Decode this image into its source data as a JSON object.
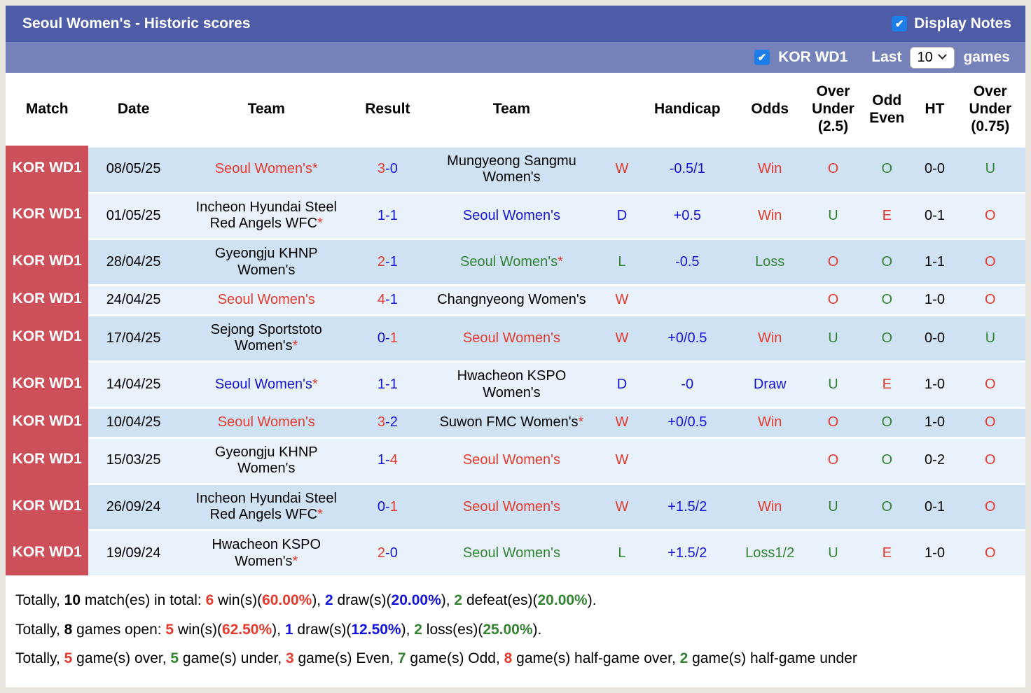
{
  "colors": {
    "red": "#e63a2e",
    "blue": "#1414dd",
    "green": "#338333",
    "black": "#000000",
    "header_bar": "#4e5ba6",
    "subheader_bar": "#7581b9",
    "checkbox_blue": "#1d7de9",
    "match_cell_red": "#cc4f5a",
    "row_odd": "#cfe2f3",
    "row_even": "#e9f2fb"
  },
  "header": {
    "title": "Seoul Women's - Historic scores",
    "display_notes_label": "Display Notes",
    "display_notes_checked": true
  },
  "subheader": {
    "league_label": "KOR WD1",
    "league_checked": true,
    "last_label": "Last",
    "games_count": "10",
    "games_label": "games"
  },
  "table": {
    "columns": [
      {
        "key": "match",
        "label": "Match"
      },
      {
        "key": "date",
        "label": "Date"
      },
      {
        "key": "team1",
        "label": "Team"
      },
      {
        "key": "result",
        "label": "Result"
      },
      {
        "key": "team2",
        "label": "Team"
      },
      {
        "key": "wdl",
        "label": ""
      },
      {
        "key": "handicap",
        "label": "Handicap"
      },
      {
        "key": "odds",
        "label": "Odds"
      },
      {
        "key": "ou25",
        "label": "Over Under (2.5)",
        "lines": [
          "Over",
          "Under",
          "(2.5)"
        ]
      },
      {
        "key": "odd_even",
        "label": "Odd Even",
        "lines": [
          "Odd",
          "Even"
        ]
      },
      {
        "key": "ht",
        "label": "HT"
      },
      {
        "key": "ou075",
        "label": "Over Under (0.75)",
        "lines": [
          "Over",
          "Under",
          "(0.75)"
        ]
      }
    ],
    "rows": [
      {
        "match": "KOR WD1",
        "date": "08/05/25",
        "team1": {
          "name": "Seoul Women's",
          "star": true,
          "color": "red"
        },
        "result": {
          "home": "3",
          "away": "0",
          "home_color": "red",
          "away_color": "blue"
        },
        "team2": {
          "name": "Mungyeong Sangmu Women's",
          "star": false,
          "color": "black"
        },
        "wdl": {
          "text": "W",
          "color": "red"
        },
        "handicap": "-0.5/1",
        "odds": {
          "text": "Win",
          "color": "red"
        },
        "ou25": {
          "text": "O",
          "color": "red"
        },
        "odd_even": {
          "text": "O",
          "color": "green"
        },
        "ht": "0-0",
        "ou075": {
          "text": "U",
          "color": "green"
        }
      },
      {
        "match": "KOR WD1",
        "date": "01/05/25",
        "team1": {
          "name": "Incheon Hyundai Steel Red Angels WFC",
          "star": true,
          "color": "black"
        },
        "result": {
          "home": "1",
          "away": "1",
          "home_color": "blue",
          "away_color": "blue"
        },
        "team2": {
          "name": "Seoul Women's",
          "star": false,
          "color": "blue"
        },
        "wdl": {
          "text": "D",
          "color": "blue"
        },
        "handicap": "+0.5",
        "odds": {
          "text": "Win",
          "color": "red"
        },
        "ou25": {
          "text": "U",
          "color": "green"
        },
        "odd_even": {
          "text": "E",
          "color": "red"
        },
        "ht": "0-1",
        "ou075": {
          "text": "O",
          "color": "red"
        }
      },
      {
        "match": "KOR WD1",
        "date": "28/04/25",
        "team1": {
          "name": "Gyeongju KHNP Women's",
          "star": false,
          "color": "black"
        },
        "result": {
          "home": "2",
          "away": "1",
          "home_color": "red",
          "away_color": "blue"
        },
        "team2": {
          "name": "Seoul Women's",
          "star": true,
          "color": "green"
        },
        "wdl": {
          "text": "L",
          "color": "green"
        },
        "handicap": "-0.5",
        "odds": {
          "text": "Loss",
          "color": "green"
        },
        "ou25": {
          "text": "O",
          "color": "red"
        },
        "odd_even": {
          "text": "O",
          "color": "green"
        },
        "ht": "1-1",
        "ou075": {
          "text": "O",
          "color": "red"
        }
      },
      {
        "match": "KOR WD1",
        "date": "24/04/25",
        "team1": {
          "name": "Seoul Women's",
          "star": false,
          "color": "red"
        },
        "result": {
          "home": "4",
          "away": "1",
          "home_color": "red",
          "away_color": "blue"
        },
        "team2": {
          "name": "Changnyeong Women's",
          "star": false,
          "color": "black"
        },
        "wdl": {
          "text": "W",
          "color": "red"
        },
        "handicap": "",
        "odds": {
          "text": "",
          "color": "black"
        },
        "ou25": {
          "text": "O",
          "color": "red"
        },
        "odd_even": {
          "text": "O",
          "color": "green"
        },
        "ht": "1-0",
        "ou075": {
          "text": "O",
          "color": "red"
        }
      },
      {
        "match": "KOR WD1",
        "date": "17/04/25",
        "team1": {
          "name": "Sejong Sportstoto Women's",
          "star": true,
          "color": "black"
        },
        "result": {
          "home": "0",
          "away": "1",
          "home_color": "blue",
          "away_color": "red"
        },
        "team2": {
          "name": "Seoul Women's",
          "star": false,
          "color": "red"
        },
        "wdl": {
          "text": "W",
          "color": "red"
        },
        "handicap": "+0/0.5",
        "odds": {
          "text": "Win",
          "color": "red"
        },
        "ou25": {
          "text": "U",
          "color": "green"
        },
        "odd_even": {
          "text": "O",
          "color": "green"
        },
        "ht": "0-0",
        "ou075": {
          "text": "U",
          "color": "green"
        }
      },
      {
        "match": "KOR WD1",
        "date": "14/04/25",
        "team1": {
          "name": "Seoul Women's",
          "star": true,
          "color": "blue"
        },
        "result": {
          "home": "1",
          "away": "1",
          "home_color": "blue",
          "away_color": "blue"
        },
        "team2": {
          "name": "Hwacheon KSPO Women's",
          "star": false,
          "color": "black"
        },
        "wdl": {
          "text": "D",
          "color": "blue"
        },
        "handicap": "-0",
        "odds": {
          "text": "Draw",
          "color": "blue"
        },
        "ou25": {
          "text": "U",
          "color": "green"
        },
        "odd_even": {
          "text": "E",
          "color": "red"
        },
        "ht": "1-0",
        "ou075": {
          "text": "O",
          "color": "red"
        }
      },
      {
        "match": "KOR WD1",
        "date": "10/04/25",
        "team1": {
          "name": "Seoul Women's",
          "star": false,
          "color": "red"
        },
        "result": {
          "home": "3",
          "away": "2",
          "home_color": "red",
          "away_color": "blue"
        },
        "team2": {
          "name": "Suwon FMC Women's",
          "star": true,
          "color": "black"
        },
        "wdl": {
          "text": "W",
          "color": "red"
        },
        "handicap": "+0/0.5",
        "odds": {
          "text": "Win",
          "color": "red"
        },
        "ou25": {
          "text": "O",
          "color": "red"
        },
        "odd_even": {
          "text": "O",
          "color": "green"
        },
        "ht": "1-0",
        "ou075": {
          "text": "O",
          "color": "red"
        }
      },
      {
        "match": "KOR WD1",
        "date": "15/03/25",
        "team1": {
          "name": "Gyeongju KHNP Women's",
          "star": false,
          "color": "black"
        },
        "result": {
          "home": "1",
          "away": "4",
          "home_color": "blue",
          "away_color": "red"
        },
        "team2": {
          "name": "Seoul Women's",
          "star": false,
          "color": "red"
        },
        "wdl": {
          "text": "W",
          "color": "red"
        },
        "handicap": "",
        "odds": {
          "text": "",
          "color": "black"
        },
        "ou25": {
          "text": "O",
          "color": "red"
        },
        "odd_even": {
          "text": "O",
          "color": "green"
        },
        "ht": "0-2",
        "ou075": {
          "text": "O",
          "color": "red"
        }
      },
      {
        "match": "KOR WD1",
        "date": "26/09/24",
        "team1": {
          "name": "Incheon Hyundai Steel Red Angels WFC",
          "star": true,
          "color": "black"
        },
        "result": {
          "home": "0",
          "away": "1",
          "home_color": "blue",
          "away_color": "red"
        },
        "team2": {
          "name": "Seoul Women's",
          "star": false,
          "color": "red"
        },
        "wdl": {
          "text": "W",
          "color": "red"
        },
        "handicap": "+1.5/2",
        "odds": {
          "text": "Win",
          "color": "red"
        },
        "ou25": {
          "text": "U",
          "color": "green"
        },
        "odd_even": {
          "text": "O",
          "color": "green"
        },
        "ht": "0-1",
        "ou075": {
          "text": "O",
          "color": "red"
        }
      },
      {
        "match": "KOR WD1",
        "date": "19/09/24",
        "team1": {
          "name": "Hwacheon KSPO Women's",
          "star": true,
          "color": "black"
        },
        "result": {
          "home": "2",
          "away": "0",
          "home_color": "red",
          "away_color": "blue"
        },
        "team2": {
          "name": "Seoul Women's",
          "star": false,
          "color": "green"
        },
        "wdl": {
          "text": "L",
          "color": "green"
        },
        "handicap": "+1.5/2",
        "odds": {
          "text": "Loss1/2",
          "color": "green"
        },
        "ou25": {
          "text": "U",
          "color": "green"
        },
        "odd_even": {
          "text": "E",
          "color": "red"
        },
        "ht": "1-0",
        "ou075": {
          "text": "O",
          "color": "red"
        }
      }
    ]
  },
  "summary": {
    "lines": [
      [
        {
          "t": "Totally, "
        },
        {
          "t": "10",
          "b": true
        },
        {
          "t": " match(es) in total: "
        },
        {
          "t": "6",
          "b": true,
          "c": "red"
        },
        {
          "t": " win(s)("
        },
        {
          "t": "60.00%",
          "b": true,
          "c": "red"
        },
        {
          "t": "), "
        },
        {
          "t": "2",
          "b": true,
          "c": "blue"
        },
        {
          "t": " draw(s)("
        },
        {
          "t": "20.00%",
          "b": true,
          "c": "blue"
        },
        {
          "t": "), "
        },
        {
          "t": "2",
          "b": true,
          "c": "green"
        },
        {
          "t": " defeat(es)("
        },
        {
          "t": "20.00%",
          "b": true,
          "c": "green"
        },
        {
          "t": ")."
        }
      ],
      [
        {
          "t": "Totally, "
        },
        {
          "t": "8",
          "b": true
        },
        {
          "t": " games open: "
        },
        {
          "t": "5",
          "b": true,
          "c": "red"
        },
        {
          "t": " win(s)("
        },
        {
          "t": "62.50%",
          "b": true,
          "c": "red"
        },
        {
          "t": "), "
        },
        {
          "t": "1",
          "b": true,
          "c": "blue"
        },
        {
          "t": " draw(s)("
        },
        {
          "t": "12.50%",
          "b": true,
          "c": "blue"
        },
        {
          "t": "), "
        },
        {
          "t": "2",
          "b": true,
          "c": "green"
        },
        {
          "t": " loss(es)("
        },
        {
          "t": "25.00%",
          "b": true,
          "c": "green"
        },
        {
          "t": ")."
        }
      ],
      [
        {
          "t": "Totally, "
        },
        {
          "t": "5",
          "b": true,
          "c": "red"
        },
        {
          "t": " game(s) over, "
        },
        {
          "t": "5",
          "b": true,
          "c": "green"
        },
        {
          "t": " game(s) under, "
        },
        {
          "t": "3",
          "b": true,
          "c": "red"
        },
        {
          "t": " game(s) Even, "
        },
        {
          "t": "7",
          "b": true,
          "c": "green"
        },
        {
          "t": " game(s) Odd, "
        },
        {
          "t": "8",
          "b": true,
          "c": "red"
        },
        {
          "t": " game(s) half-game over, "
        },
        {
          "t": "2",
          "b": true,
          "c": "green"
        },
        {
          "t": " game(s) half-game under"
        }
      ]
    ]
  }
}
